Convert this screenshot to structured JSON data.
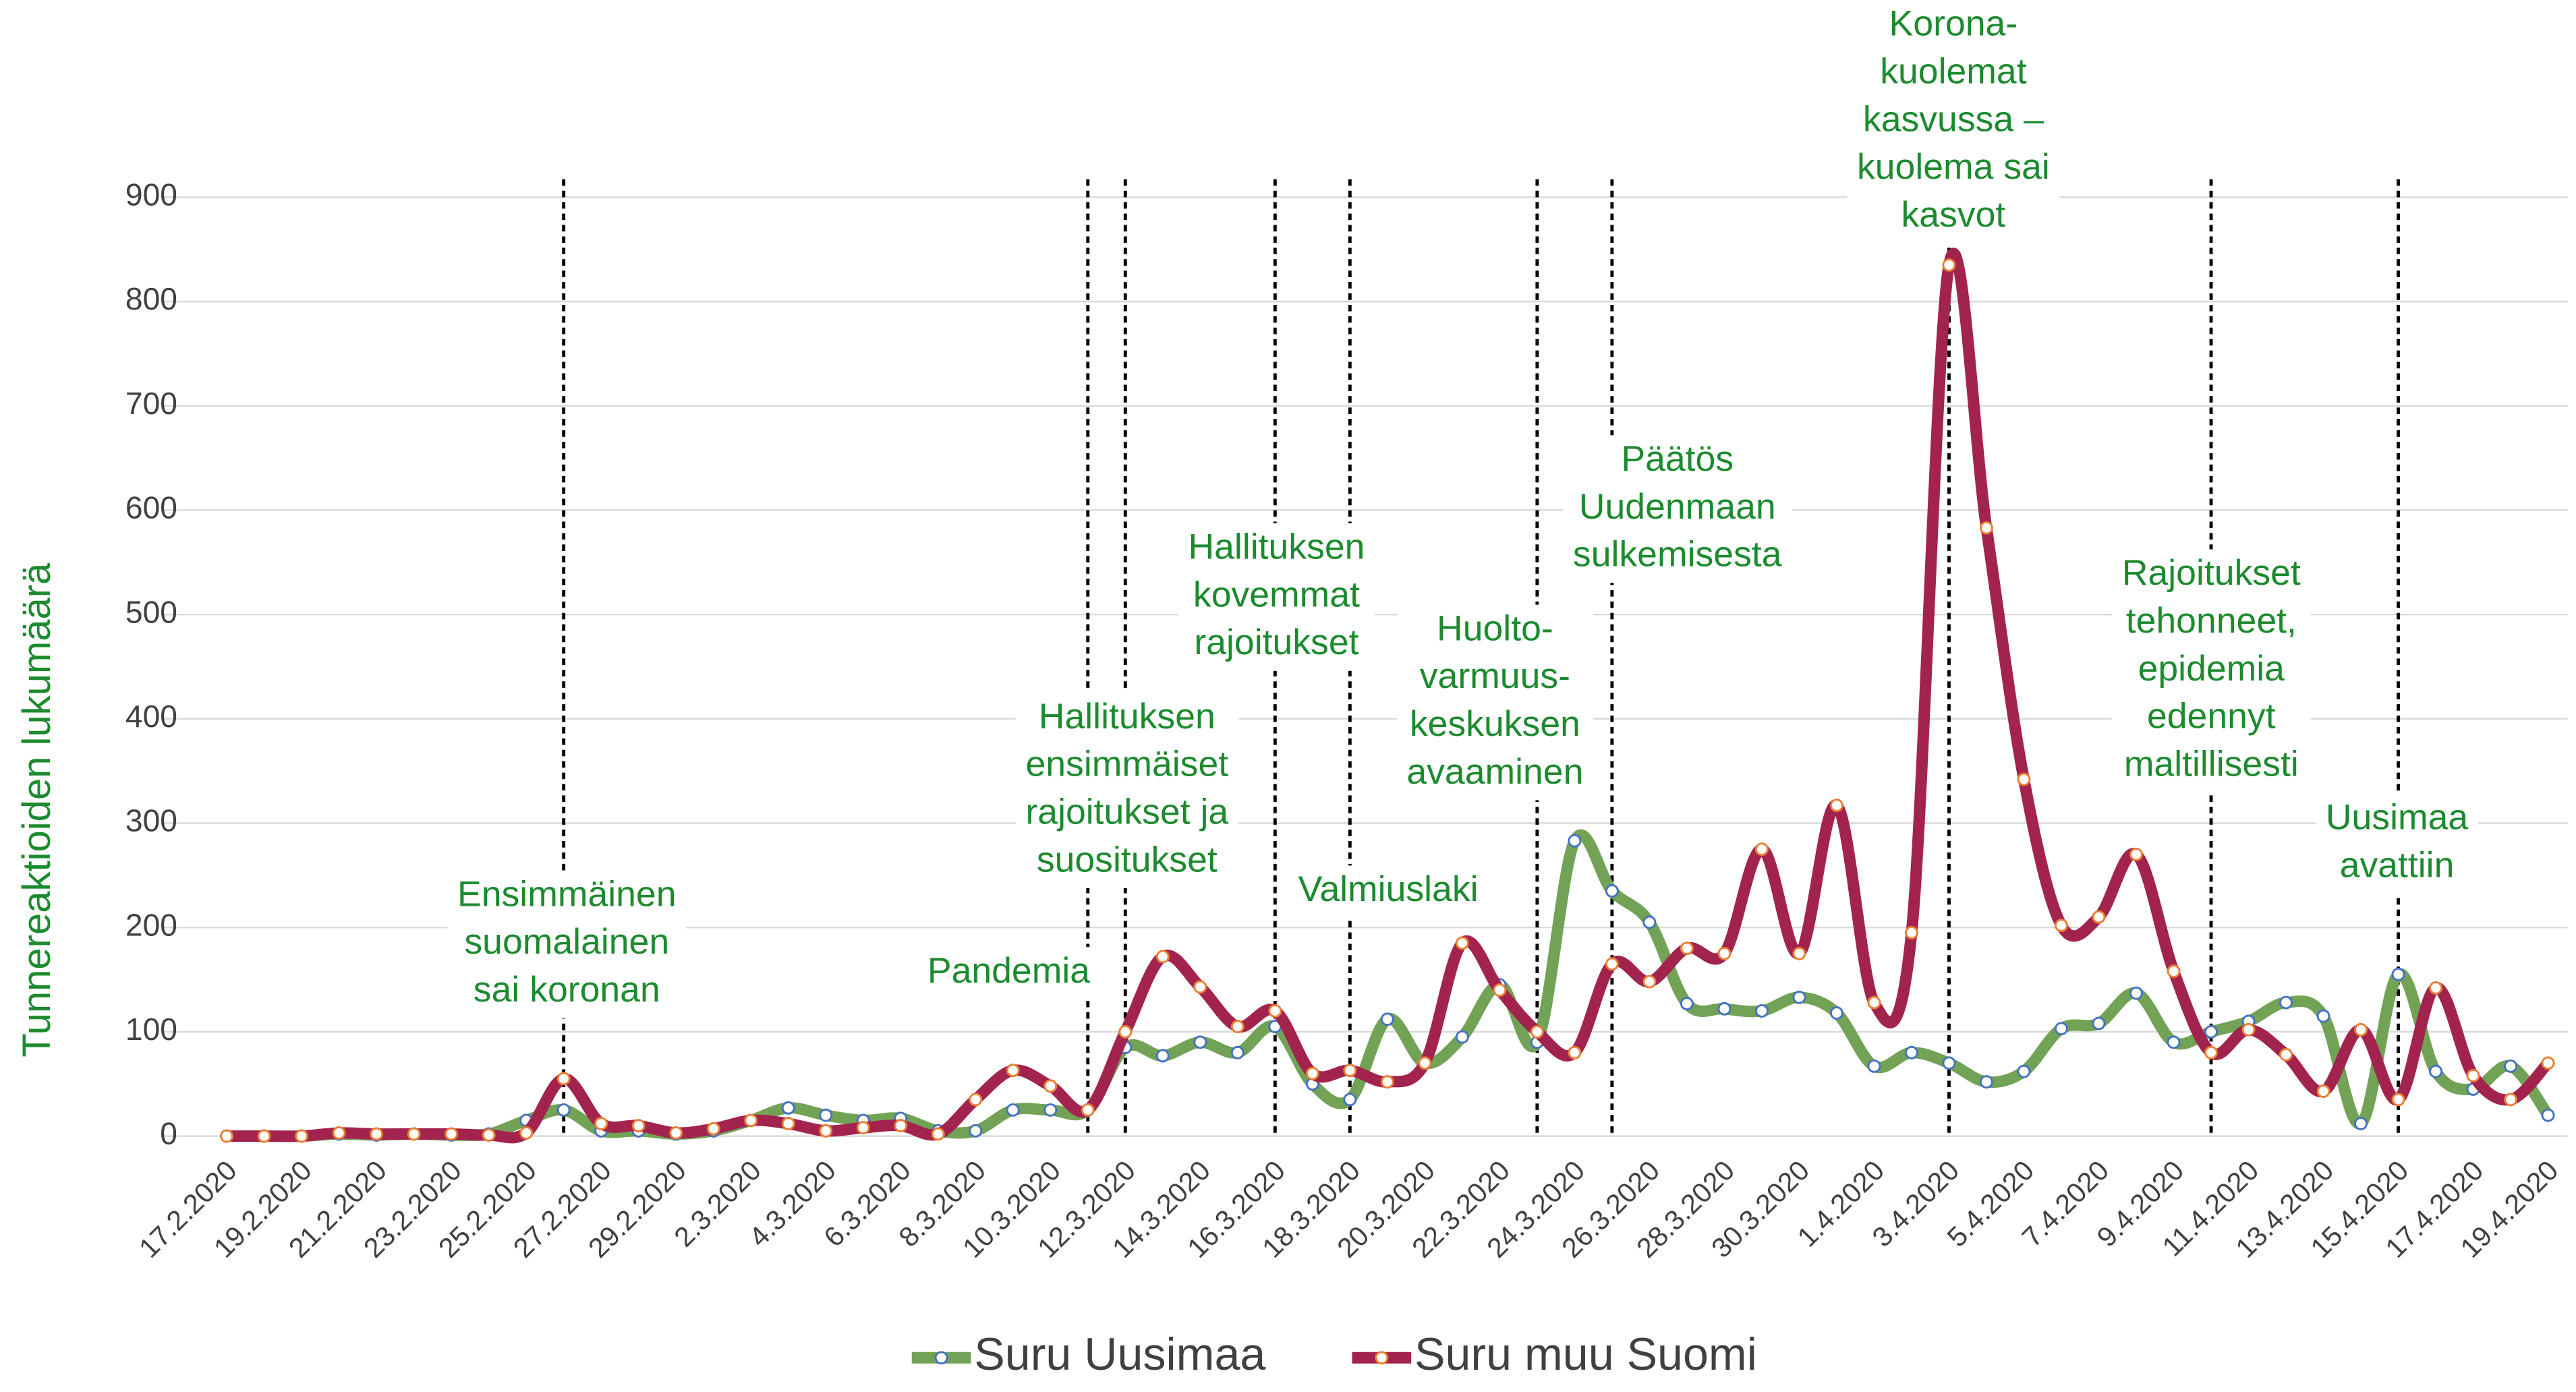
{
  "chart_data": {
    "type": "line",
    "y_label": "Tunnereaktioiden lukumäärä",
    "categories": [
      "17.2.2020",
      null,
      "19.2.2020",
      null,
      "21.2.2020",
      null,
      "23.2.2020",
      null,
      "25.2.2020",
      null,
      "27.2.2020",
      null,
      "29.2.2020",
      null,
      "2.3.2020",
      null,
      "4.3.2020",
      null,
      "6.3.2020",
      null,
      "8.3.2020",
      null,
      "10.3.2020",
      null,
      "12.3.2020",
      null,
      "14.3.2020",
      null,
      "16.3.2020",
      null,
      "18.3.2020",
      null,
      "20.3.2020",
      null,
      "22.3.2020",
      null,
      "24.3.2020",
      null,
      "26.3.2020",
      null,
      "28.3.2020",
      null,
      "30.3.2020",
      null,
      "1.4.2020",
      null,
      "3.4.2020",
      null,
      "5.4.2020",
      null,
      "7.4.2020",
      null,
      "9.4.2020",
      null,
      "11.4.2020",
      null,
      "13.4.2020",
      null,
      "15.4.2020",
      null,
      "17.4.2020",
      null,
      "19.4.2020"
    ],
    "series": [
      {
        "name": "Suru Uusimaa",
        "color": "#72a255",
        "marker_color": "#4472c4",
        "values": [
          0,
          0,
          0,
          2,
          1,
          2,
          1,
          2,
          15,
          25,
          5,
          5,
          2,
          5,
          15,
          27,
          20,
          15,
          17,
          5,
          5,
          25,
          25,
          25,
          85,
          77,
          90,
          80,
          105,
          50,
          35,
          112,
          70,
          95,
          145,
          90,
          283,
          235,
          205,
          127,
          122,
          120,
          133,
          118,
          67,
          80,
          70,
          52,
          62,
          103,
          108,
          137,
          90,
          100,
          110,
          128,
          115,
          12,
          155,
          62,
          45,
          67,
          20
        ]
      },
      {
        "name": "Suru muu Suomi",
        "color": "#a3234f",
        "marker_color": "#ed7d31",
        "values": [
          0,
          0,
          0,
          3,
          2,
          2,
          2,
          1,
          3,
          55,
          12,
          10,
          3,
          7,
          15,
          12,
          5,
          8,
          10,
          2,
          35,
          63,
          48,
          25,
          100,
          172,
          143,
          105,
          120,
          60,
          63,
          52,
          70,
          185,
          140,
          100,
          80,
          165,
          148,
          180,
          175,
          275,
          175,
          317,
          128,
          195,
          835,
          583,
          342,
          202,
          210,
          270,
          158,
          80,
          102,
          78,
          43,
          102,
          35,
          142,
          58,
          35,
          70
        ]
      }
    ],
    "ylim": [
      0,
      900
    ],
    "yticks": [
      0,
      100,
      200,
      300,
      400,
      500,
      600,
      700,
      800,
      900
    ],
    "grid": true,
    "legend": "bottom",
    "annotations": [
      [
        "Ensimmäinen",
        "suomalainen",
        "sai koronan"
      ],
      [
        "Pandemia"
      ],
      [
        "Hallituksen",
        "ensimmäiset",
        "rajoitukset ja",
        "suositukset"
      ],
      [
        "Hallituksen",
        "kovemmat",
        "rajoitukset"
      ],
      [
        "Valmiuslaki"
      ],
      [
        "Huolto-",
        "varmuus-",
        "keskuksen",
        "avaaminen"
      ],
      [
        "Päätös",
        "Uudenmaan",
        "sulkemisesta"
      ],
      [
        "Korona-",
        "kuolemat",
        "kasvussa –",
        "kuolema sai",
        "kasvot"
      ],
      [
        "Rajoitukset",
        "tehonneet,",
        "epidemia",
        "edennyt",
        "maltillisesti"
      ],
      [
        "Uusimaa",
        "avattiin"
      ]
    ]
  }
}
